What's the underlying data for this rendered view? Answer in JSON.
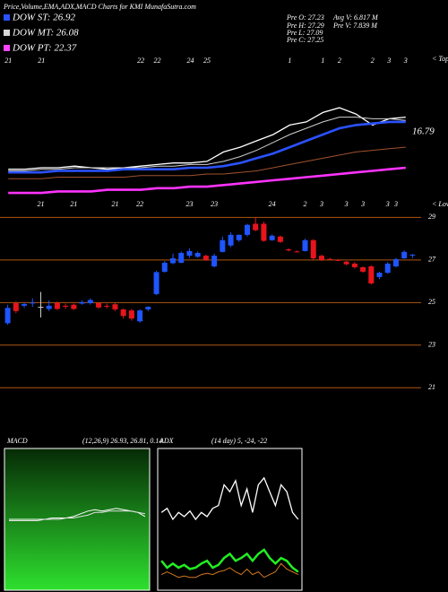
{
  "header": {
    "title": "Price,Volume,EMA,ADX,MACD Charts for KMI MunafaSutra.com",
    "dow": [
      "DOW ST: 26.92",
      "DOW MT: 26.08",
      "DOW PT: 22.37"
    ],
    "dow_colors": [
      "#2a52ff",
      "#d8d8d8",
      "#ff44ff"
    ],
    "stats_left": [
      "Pre  O: 27.23",
      "Pre  H: 27.29",
      "Pre  L: 27.09",
      "Pre  C: 27.25"
    ],
    "stats_right": [
      "Avg V: 6.817 M",
      "Pre  V: 7.839 M"
    ]
  },
  "chart_data": [
    {
      "type": "line",
      "tops_label": "< Tops",
      "lows_label": "< Lows",
      "annotation": "16.79",
      "categories": [
        "21",
        null,
        "21",
        null,
        null,
        null,
        null,
        null,
        "22",
        "22",
        null,
        "24",
        "25",
        null,
        null,
        null,
        null,
        "1",
        null,
        "1",
        "2",
        null,
        "2",
        "3",
        "3"
      ],
      "ylim": [
        0,
        100
      ],
      "series": [
        {
          "color": "#ffffff",
          "values": [
            28,
            28,
            29,
            29,
            30,
            29,
            28,
            29,
            30,
            31,
            32,
            32,
            33,
            39,
            42,
            46,
            50,
            56,
            58,
            64,
            67,
            63,
            56,
            60,
            61
          ]
        },
        {
          "color": "#cfcfcf",
          "values": [
            27,
            27,
            28,
            28,
            29,
            29,
            29,
            29,
            29,
            30,
            30,
            31,
            31,
            33,
            36,
            40,
            45,
            50,
            54,
            58,
            61,
            61,
            60,
            60,
            59
          ]
        },
        {
          "color": "#2a52ff",
          "values": [
            26,
            26,
            26,
            27,
            27,
            27,
            27,
            28,
            28,
            28,
            28,
            29,
            29,
            30,
            32,
            35,
            38,
            42,
            46,
            50,
            54,
            56,
            57,
            58,
            58
          ]
        },
        {
          "color": "#a0522d",
          "values": [
            22,
            22,
            22,
            23,
            23,
            23,
            23,
            23,
            24,
            24,
            24,
            24,
            25,
            25,
            26,
            27,
            29,
            31,
            33,
            35,
            37,
            39,
            40,
            41,
            42
          ]
        },
        {
          "color": "#ff33ff",
          "values": [
            13,
            13,
            13,
            14,
            14,
            14,
            15,
            15,
            15,
            16,
            16,
            17,
            17,
            18,
            19,
            20,
            21,
            22,
            23,
            24,
            25,
            26,
            27,
            28,
            29
          ]
        }
      ]
    },
    {
      "type": "candlestick",
      "categories": [
        null,
        null,
        null,
        null,
        "21",
        null,
        null,
        null,
        "21",
        null,
        null,
        null,
        null,
        "21",
        null,
        null,
        "22",
        null,
        null,
        null,
        null,
        null,
        "23",
        null,
        null,
        "23",
        null,
        null,
        null,
        null,
        null,
        null,
        "24",
        null,
        null,
        null,
        "2",
        null,
        "3",
        null,
        null,
        "3",
        null,
        "3",
        null,
        null,
        "3",
        "3",
        null,
        null
      ],
      "open": [
        24.03,
        24.97,
        24.85,
        24.98,
        24.8,
        24.7,
        24.98,
        24.85,
        24.9,
        24.95,
        24.97,
        24.98,
        24.85,
        24.92,
        24.68,
        24.63,
        24.12,
        24.68,
        25.4,
        26.45,
        26.85,
        26.87,
        27.2,
        27.15,
        27.2,
        26.7,
        27.38,
        27.68,
        27.93,
        28.18,
        28.7,
        28.7,
        27.93,
        28.1,
        27.5,
        27.4,
        27.42,
        27.93,
        27.2,
        27.05,
        27.0,
        26.92,
        26.83,
        26.66,
        26.7,
        26.2,
        26.4,
        26.7,
        27.08,
        27.23
      ],
      "high": [
        24.9,
        25.05,
        25.0,
        25.2,
        25.5,
        25.1,
        25.05,
        24.95,
        24.95,
        25.1,
        25.2,
        25.0,
        24.95,
        24.97,
        24.72,
        24.7,
        24.68,
        24.82,
        26.5,
        26.95,
        27.3,
        27.4,
        27.55,
        27.4,
        27.25,
        27.3,
        28.1,
        28.3,
        28.2,
        28.7,
        29.0,
        28.8,
        28.2,
        28.15,
        27.55,
        27.45,
        28.0,
        27.98,
        27.25,
        27.1,
        27.05,
        26.95,
        26.9,
        26.7,
        26.75,
        26.45,
        26.9,
        27.1,
        27.45,
        27.29
      ],
      "low": [
        23.95,
        24.5,
        24.75,
        24.8,
        24.3,
        24.6,
        24.65,
        24.7,
        24.65,
        24.9,
        24.9,
        24.7,
        24.72,
        24.6,
        24.25,
        24.15,
        24.05,
        24.6,
        25.35,
        26.4,
        26.8,
        26.85,
        27.1,
        27.1,
        26.95,
        26.65,
        27.35,
        27.6,
        27.85,
        28.1,
        28.35,
        27.85,
        27.9,
        27.8,
        27.4,
        27.35,
        27.4,
        27.0,
        26.95,
        27.0,
        26.95,
        26.75,
        26.6,
        26.4,
        25.85,
        26.1,
        26.35,
        26.65,
        27.05,
        27.09
      ],
      "close": [
        24.75,
        24.6,
        24.93,
        25.0,
        24.8,
        24.85,
        24.7,
        24.8,
        24.7,
        25.02,
        25.12,
        24.77,
        24.82,
        24.68,
        24.37,
        24.25,
        24.63,
        24.8,
        26.43,
        26.87,
        27.08,
        27.33,
        27.42,
        27.33,
        27.0,
        27.2,
        27.93,
        28.18,
        28.18,
        28.65,
        28.4,
        27.9,
        28.14,
        27.85,
        27.45,
        27.38,
        27.93,
        27.08,
        27.0,
        27.04,
        26.98,
        26.8,
        26.66,
        26.45,
        25.9,
        26.4,
        26.83,
        27.04,
        27.38,
        27.25
      ],
      "up_color": "#1f55ff",
      "down_color": "#e8141c",
      "flat_color": "#cccccc",
      "grid_color": "#b0560f",
      "ylim": [
        19.2,
        29.1
      ],
      "yticks": [
        21,
        23,
        25,
        27,
        29
      ],
      "grid": true
    },
    {
      "type": "line",
      "title": "MACD",
      "subtitle": "(12,26,9) 26.93, 26.81, 0.14",
      "ylim": [
        0,
        100
      ],
      "series": [
        {
          "color": "#ffffff",
          "values": [
            50,
            50,
            50,
            50,
            50,
            50,
            51,
            51,
            51,
            52,
            54,
            56,
            57,
            56,
            57,
            58,
            57,
            56,
            55,
            52
          ]
        },
        {
          "color": "#e0e0e0",
          "values": [
            49,
            49,
            49,
            49,
            49,
            50,
            50,
            50,
            51,
            51,
            52,
            53,
            55,
            55,
            56,
            56,
            56,
            56,
            55,
            54
          ]
        }
      ]
    },
    {
      "type": "line",
      "title": "ADX",
      "subtitle": "(14 day) 5, -24, -22",
      "ylim": [
        0,
        100
      ],
      "series": [
        {
          "color": "#ffffff",
          "values": [
            55,
            58,
            50,
            55,
            52,
            56,
            50,
            55,
            52,
            58,
            60,
            75,
            70,
            78,
            60,
            72,
            55,
            75,
            80,
            70,
            60,
            75,
            70,
            55,
            50
          ]
        },
        {
          "color": "#22ee22",
          "values": [
            20,
            15,
            18,
            15,
            17,
            14,
            15,
            18,
            20,
            15,
            17,
            22,
            25,
            20,
            22,
            25,
            20,
            25,
            28,
            22,
            18,
            22,
            20,
            15,
            12
          ]
        },
        {
          "color": "#d2771e",
          "values": [
            10,
            12,
            10,
            8,
            9,
            8,
            8,
            10,
            11,
            10,
            12,
            13,
            15,
            12,
            10,
            14,
            10,
            12,
            8,
            10,
            12,
            18,
            14,
            12,
            10
          ]
        }
      ]
    }
  ]
}
